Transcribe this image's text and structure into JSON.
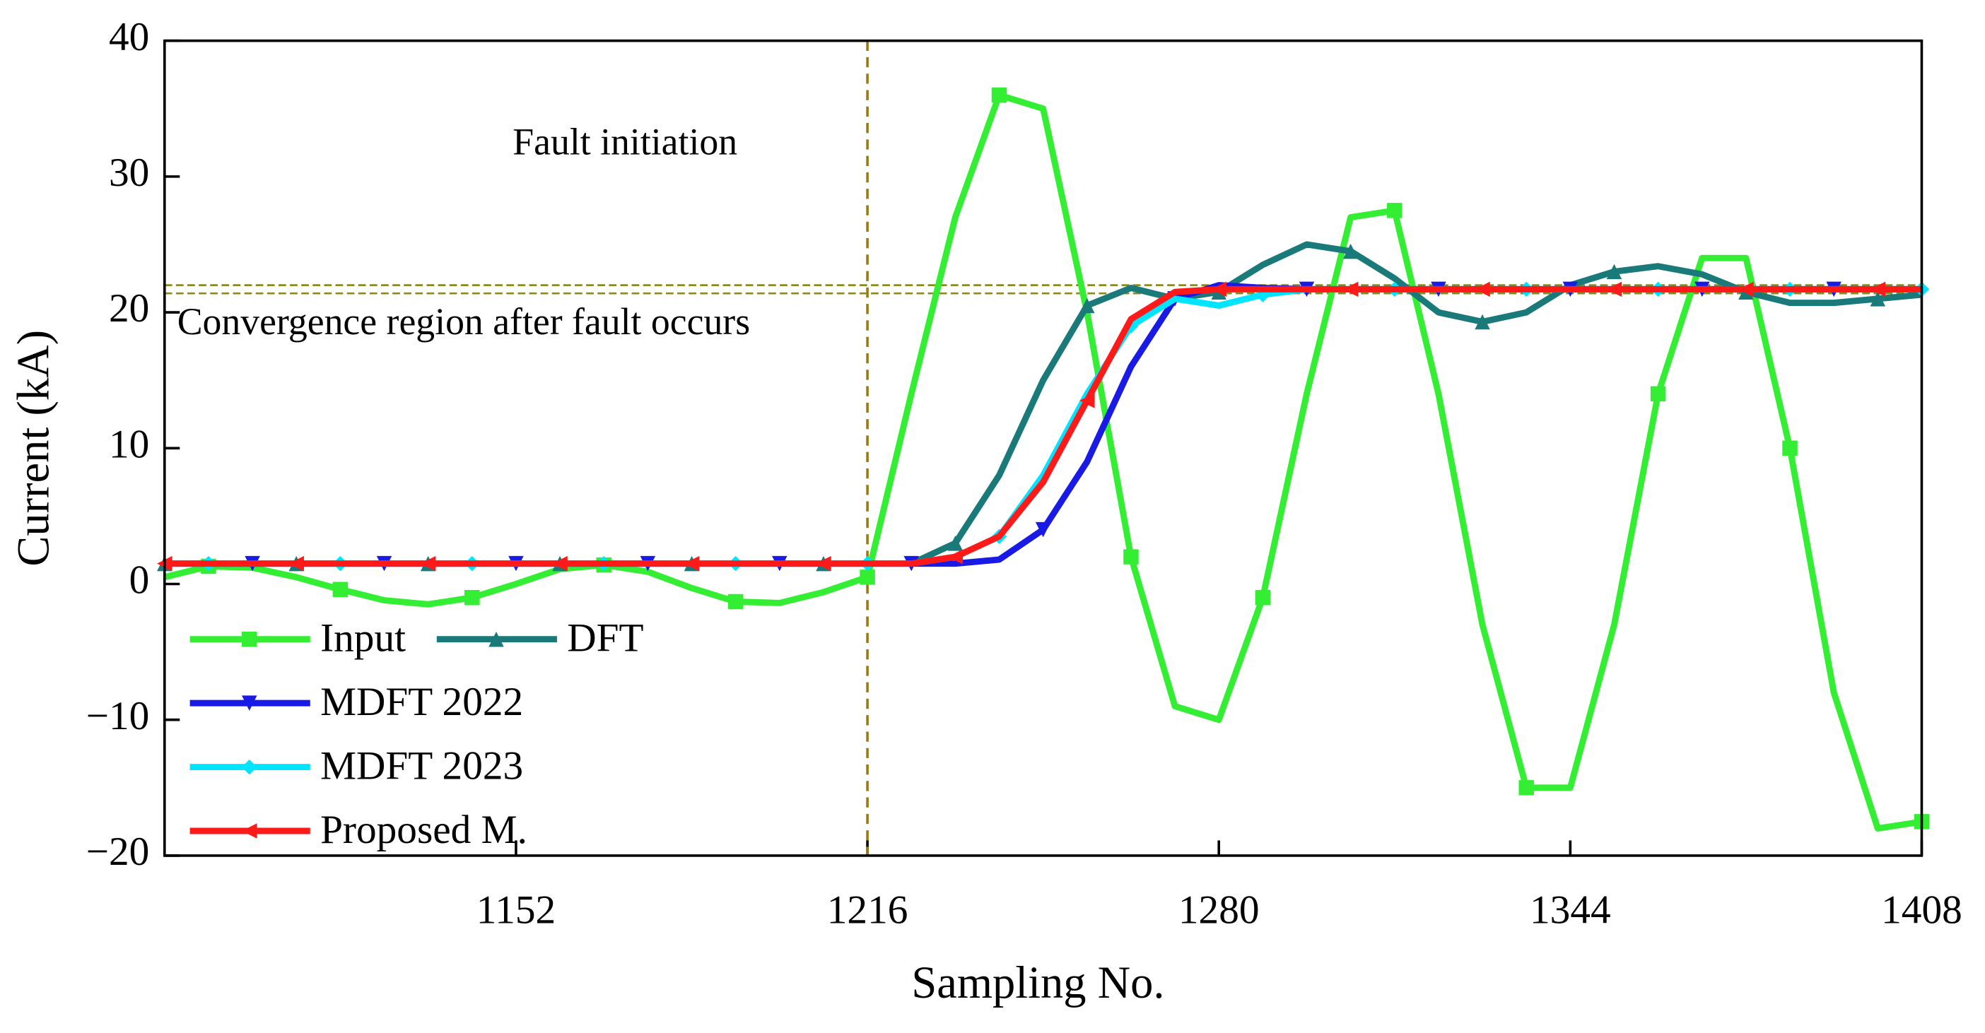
{
  "chart_data": {
    "type": "line",
    "xlabel": "Sampling No.",
    "ylabel": "Current (kA)",
    "xlim": [
      1088,
      1408
    ],
    "xticks": [
      1152,
      1216,
      1280,
      1344,
      1408
    ],
    "ylim": [
      -20,
      40
    ],
    "yticks": [
      {
        "value": -20,
        "label": "−20"
      },
      {
        "value": -10,
        "label": "−10"
      },
      0,
      10,
      20,
      30,
      40
    ],
    "x": [
      1088,
      1096,
      1104,
      1112,
      1120,
      1128,
      1136,
      1144,
      1152,
      1160,
      1168,
      1176,
      1184,
      1192,
      1200,
      1208,
      1216,
      1224,
      1232,
      1240,
      1248,
      1256,
      1264,
      1272,
      1280,
      1288,
      1296,
      1304,
      1312,
      1320,
      1328,
      1336,
      1344,
      1352,
      1360,
      1368,
      1376,
      1384,
      1392,
      1400,
      1408
    ],
    "series": [
      {
        "name": "Input",
        "color": "#33ee33",
        "values": [
          0.5,
          1.3,
          1.2,
          0.5,
          -0.4,
          -1.2,
          -1.5,
          -1.0,
          0,
          1.1,
          1.4,
          0.9,
          -0.3,
          -1.3,
          -1.4,
          -0.6,
          0.5,
          14,
          27,
          36,
          35,
          20,
          2,
          -9,
          -10,
          -1,
          14,
          27,
          27.5,
          14,
          -3,
          -15,
          -15,
          -3,
          14,
          24,
          24,
          10,
          -8,
          -18,
          -17.5
        ]
      },
      {
        "name": "DFT",
        "color": "#1a7a7a",
        "values": [
          1.5,
          1.5,
          1.5,
          1.5,
          1.5,
          1.5,
          1.5,
          1.5,
          1.5,
          1.5,
          1.5,
          1.5,
          1.5,
          1.5,
          1.5,
          1.5,
          1.5,
          1.5,
          3,
          8,
          15,
          20.5,
          21.8,
          21,
          21.5,
          23.5,
          25,
          24.5,
          22.5,
          20,
          19.3,
          20,
          22,
          23,
          23.4,
          22.8,
          21.5,
          20.7,
          20.7,
          21,
          21.3
        ]
      },
      {
        "name": "MDFT 2022",
        "color": "#1a1ae6",
        "values": [
          1.5,
          1.5,
          1.5,
          1.5,
          1.5,
          1.5,
          1.5,
          1.5,
          1.5,
          1.5,
          1.5,
          1.5,
          1.5,
          1.5,
          1.5,
          1.5,
          1.5,
          1.5,
          1.5,
          1.8,
          4,
          9,
          16,
          21,
          22,
          21.8,
          21.7,
          21.7,
          21.7,
          21.7,
          21.7,
          21.7,
          21.7,
          21.7,
          21.7,
          21.7,
          21.7,
          21.7,
          21.7,
          21.7,
          21.7
        ]
      },
      {
        "name": "MDFT 2023",
        "color": "#00e5ff",
        "values": [
          1.5,
          1.5,
          1.5,
          1.5,
          1.5,
          1.5,
          1.5,
          1.5,
          1.5,
          1.5,
          1.5,
          1.5,
          1.5,
          1.5,
          1.5,
          1.5,
          1.5,
          1.5,
          2,
          3.5,
          8,
          14,
          19,
          21,
          20.5,
          21.3,
          21.7,
          21.7,
          21.7,
          21.7,
          21.7,
          21.7,
          21.7,
          21.7,
          21.7,
          21.7,
          21.7,
          21.7,
          21.7,
          21.7,
          21.7
        ]
      },
      {
        "name": "Proposed M.",
        "color": "#ff1a1a",
        "values": [
          1.5,
          1.5,
          1.5,
          1.5,
          1.5,
          1.5,
          1.5,
          1.5,
          1.5,
          1.5,
          1.5,
          1.5,
          1.5,
          1.5,
          1.5,
          1.5,
          1.5,
          1.5,
          2,
          3.5,
          7.5,
          13.5,
          19.5,
          21.5,
          21.7,
          21.7,
          21.7,
          21.7,
          21.7,
          21.7,
          21.7,
          21.7,
          21.7,
          21.7,
          21.7,
          21.7,
          21.7,
          21.7,
          21.7,
          21.7,
          21.7
        ]
      }
    ],
    "vlines": [
      1216
    ],
    "hlines": [
      21.4,
      22
    ],
    "annotations": [
      "Fault initiation",
      "Convergence region after fault occurs"
    ]
  }
}
